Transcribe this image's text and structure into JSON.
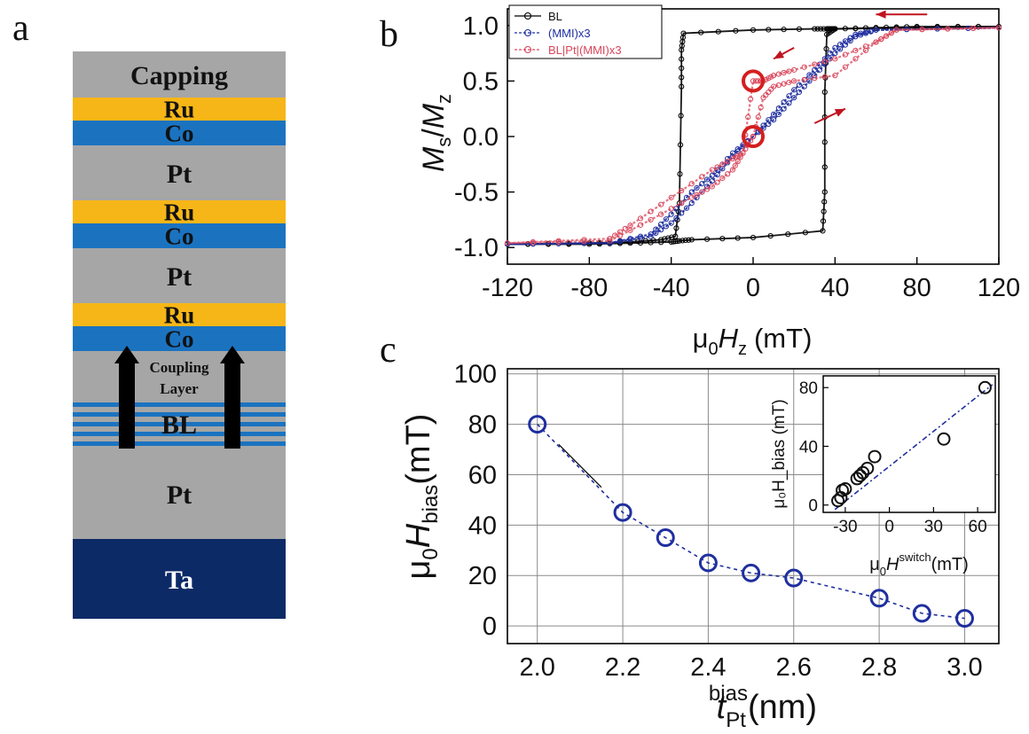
{
  "panels": {
    "a": {
      "letter": "a",
      "layers": [
        {
          "label": "Capping",
          "color": "#a6a6a6",
          "text_color": "#111111"
        },
        {
          "label": "Ru",
          "color": "#f7b617",
          "text_color": "#111111"
        },
        {
          "label": "Co",
          "color": "#1b73c0",
          "text_color": "#111111"
        },
        {
          "label": "Pt",
          "color": "#a6a6a6",
          "text_color": "#111111"
        },
        {
          "label": "Ru",
          "color": "#f7b617",
          "text_color": "#111111"
        },
        {
          "label": "Co",
          "color": "#1b73c0",
          "text_color": "#111111"
        },
        {
          "label": "Pt",
          "color": "#a6a6a6",
          "text_color": "#111111"
        },
        {
          "label": "Ru",
          "color": "#f7b617",
          "text_color": "#111111"
        },
        {
          "label": "Co",
          "color": "#1b73c0",
          "text_color": "#111111"
        },
        {
          "label": "Coupling Layer",
          "color": "#a6a6a6",
          "text_color": "#111111"
        },
        {
          "label": "BL",
          "color": "#a6a6a6",
          "text_color": "#111111"
        },
        {
          "label": "Pt",
          "color": "#a6a6a6",
          "text_color": "#111111"
        },
        {
          "label": "Ta",
          "color": "#0c2a66",
          "text_color": "#ffffff"
        }
      ],
      "coupling_words": [
        "Coupling",
        "Layer"
      ]
    },
    "b": {
      "letter": "b",
      "xlabel_prefix": "μ",
      "xlabel_sub": "0",
      "xlabel_main": "H",
      "xlabel_sub2": "z",
      "xlabel_unit": "(mT)",
      "ylabel_top": "M",
      "ylabel_top_sub": "s",
      "ylabel_sep": "/",
      "ylabel_bottom": "M",
      "ylabel_bottom_sub": "z"
    },
    "c": {
      "letter": "c",
      "ylabel_prefix": "μ",
      "ylabel_sub": "0",
      "ylabel_main": "H",
      "ylabel_sub2": "bias",
      "ylabel_unit": "(mT)",
      "xlabel_main": "t",
      "xlabel_sub": "Pt",
      "xlabel_sup": "bias",
      "xlabel_unit": "(nm)",
      "inset_ylabel": "μ₀H_bias (mT)",
      "inset_xlabel_prefix": "μ",
      "inset_xlabel_sub": "0",
      "inset_xlabel_main": "H",
      "inset_xlabel_sup": "switch",
      "inset_xlabel_unit": "(mT)"
    }
  },
  "chart_data": [
    {
      "type": "line",
      "panel": "b",
      "xlim": [
        -120,
        120
      ],
      "ylim": [
        -1.15,
        1.15
      ],
      "xticks": [
        -120,
        -80,
        -40,
        0,
        40,
        80,
        120
      ],
      "yticks": [
        -1.0,
        -0.5,
        0.0,
        0.5,
        1.0
      ],
      "xlabel": "μ0Hz (mT)",
      "ylabel": "Ms/Mz",
      "legend_position": "top-left",
      "series": [
        {
          "name": "BL",
          "color": "#000000",
          "marker": "open-circle",
          "branches": [
            {
              "x": [
                -120,
                -80,
                -60,
                -45,
                -38,
                -36,
                -35,
                -35,
                -34,
                0,
                30,
                36,
                38,
                40,
                60,
                80,
                120
              ],
              "y": [
                -0.97,
                -0.96,
                -0.95,
                -0.93,
                -0.9,
                -0.6,
                0.45,
                0.78,
                0.93,
                0.96,
                0.97,
                0.97,
                0.97,
                0.97,
                0.98,
                0.99,
                0.99
              ]
            },
            {
              "x": [
                120,
                80,
                40,
                36,
                35,
                35,
                34,
                0,
                -30,
                -36,
                -40,
                -60,
                -80,
                -120
              ],
              "y": [
                0.99,
                0.98,
                0.97,
                0.92,
                0.4,
                -0.5,
                -0.85,
                -0.91,
                -0.93,
                -0.94,
                -0.95,
                -0.96,
                -0.97,
                -0.97
              ]
            }
          ]
        },
        {
          "name": "(MMI)x3",
          "color": "#1f2f9f",
          "marker": "open-circle",
          "branches": [
            {
              "x": [
                -120,
                -70,
                -50,
                -40,
                -30,
                -20,
                -10,
                0,
                10,
                20,
                30,
                40,
                50,
                60,
                120
              ],
              "y": [
                -0.97,
                -0.96,
                -0.88,
                -0.7,
                -0.5,
                -0.35,
                -0.15,
                0.0,
                0.15,
                0.35,
                0.55,
                0.75,
                0.9,
                0.96,
                0.98
              ]
            },
            {
              "x": [
                120,
                60,
                50,
                40,
                30,
                20,
                10,
                0,
                -10,
                -20,
                -30,
                -40,
                -50,
                -70,
                -120
              ],
              "y": [
                0.98,
                0.96,
                0.92,
                0.8,
                0.6,
                0.42,
                0.2,
                0.0,
                -0.18,
                -0.4,
                -0.6,
                -0.78,
                -0.9,
                -0.96,
                -0.97
              ]
            }
          ]
        },
        {
          "name": "BL|Pt|(MMI)x3",
          "color": "#d9475b",
          "marker": "open-circle",
          "branches": [
            {
              "x": [
                -120,
                -70,
                -50,
                -30,
                -20,
                -10,
                -5,
                0,
                5,
                10,
                20,
                40,
                60,
                70,
                120
              ],
              "y": [
                -0.96,
                -0.94,
                -0.75,
                -0.55,
                -0.45,
                -0.3,
                -0.15,
                0.0,
                0.35,
                0.45,
                0.5,
                0.55,
                0.85,
                0.96,
                0.98
              ]
            },
            {
              "x": [
                120,
                70,
                60,
                40,
                20,
                10,
                5,
                0,
                -5,
                -10,
                -20,
                -40,
                -60,
                -70,
                -120
              ],
              "y": [
                0.98,
                0.96,
                0.85,
                0.7,
                0.6,
                0.55,
                0.5,
                0.5,
                -0.15,
                -0.2,
                -0.3,
                -0.55,
                -0.8,
                -0.92,
                -0.96
              ]
            }
          ]
        }
      ],
      "highlights": [
        {
          "x": 0,
          "y": 0.5
        },
        {
          "x": 0,
          "y": 0.0
        }
      ]
    },
    {
      "type": "scatter",
      "panel": "c",
      "xlim": [
        1.93,
        3.08
      ],
      "ylim": [
        -7,
        102
      ],
      "xticks": [
        2.0,
        2.2,
        2.4,
        2.6,
        2.8,
        3.0
      ],
      "yticks": [
        0,
        20,
        40,
        60,
        80,
        100
      ],
      "xlabel": "tPt bias (nm)",
      "ylabel": "μ0Hbias (mT)",
      "x": [
        2.0,
        2.2,
        2.3,
        2.4,
        2.5,
        2.6,
        2.8,
        2.9,
        3.0
      ],
      "y": [
        80,
        45,
        35,
        25,
        21,
        19,
        11,
        5,
        3
      ],
      "color": "#1f2f9f"
    },
    {
      "type": "scatter",
      "panel": "c-inset",
      "xlim": [
        -45,
        72
      ],
      "ylim": [
        -5,
        88
      ],
      "xticks": [
        -30,
        0,
        30,
        60
      ],
      "yticks": [
        0,
        40,
        80
      ],
      "xlabel": "μ0Hswitch (mT)",
      "ylabel": "μ0Hbias (mT)",
      "x": [
        -35,
        -33,
        -32,
        -30,
        -22,
        -20,
        -18,
        -15,
        -10,
        37,
        65
      ],
      "y": [
        3,
        5,
        10,
        11,
        18,
        20,
        22,
        25,
        33,
        45,
        80
      ],
      "fit": {
        "x": [
          -37,
          70
        ],
        "y": [
          -3,
          82
        ]
      },
      "color": "#1f2f9f"
    }
  ]
}
